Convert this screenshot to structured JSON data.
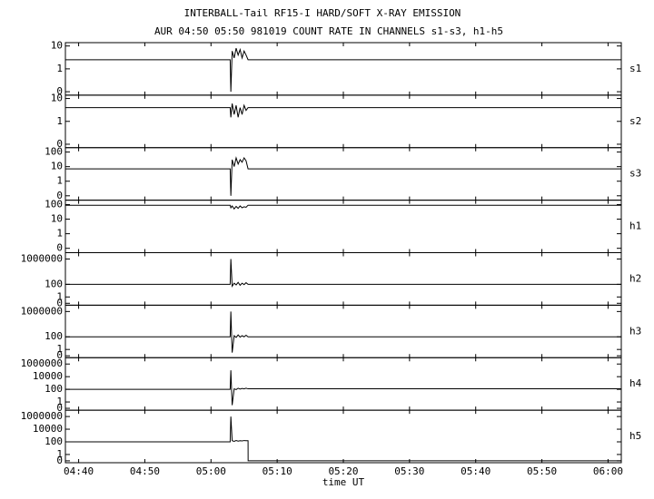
{
  "header": {
    "title": "INTERBALL-Tail RF15-I HARD/SOFT X-RAY EMISSION",
    "subtitle": "AUR 04:50 05:50 981019  COUNT RATE IN CHANNELS s1-s3, h1-h5"
  },
  "chart_data": [
    {
      "type": "line",
      "label": "s1",
      "yscale": "symlog",
      "ylim": [
        -0.15,
        14
      ],
      "yticks": [
        0,
        1,
        10
      ],
      "x": [
        278,
        302.9,
        303.0,
        303.2,
        303.5,
        303.8,
        304.1,
        304.4,
        304.7,
        305.0,
        305.3,
        305.6,
        362
      ],
      "series": [
        {
          "color": "#000000",
          "values": [
            2.5,
            2.5,
            0,
            6,
            3,
            8,
            4,
            7,
            3,
            6,
            4,
            2.5,
            2.5
          ]
        }
      ]
    },
    {
      "type": "line",
      "label": "s2",
      "yscale": "symlog",
      "ylim": [
        -0.15,
        14
      ],
      "yticks": [
        0,
        1,
        10
      ],
      "x": [
        278,
        302.9,
        303.0,
        303.2,
        303.5,
        303.8,
        304.1,
        304.4,
        304.7,
        305.0,
        305.3,
        305.6,
        362
      ],
      "series": [
        {
          "color": "#000000",
          "values": [
            4,
            4,
            1.5,
            6,
            2,
            5,
            1.5,
            4,
            2,
            5,
            3,
            4,
            4
          ]
        }
      ]
    },
    {
      "type": "line",
      "label": "s3",
      "yscale": "symlog",
      "ylim": [
        -0.3,
        200
      ],
      "yticks": [
        0,
        1,
        10,
        100
      ],
      "x": [
        278,
        302.9,
        303.0,
        303.2,
        303.5,
        303.8,
        304.1,
        304.4,
        304.7,
        305.0,
        305.3,
        305.6,
        362
      ],
      "series": [
        {
          "color": "#000000",
          "values": [
            7,
            7,
            0,
            30,
            10,
            40,
            15,
            30,
            20,
            40,
            25,
            7,
            7
          ]
        }
      ]
    },
    {
      "type": "line",
      "label": "h1",
      "yscale": "symlog",
      "ylim": [
        -0.3,
        200
      ],
      "yticks": [
        0,
        1,
        10,
        100
      ],
      "x": [
        278,
        302.9,
        303.0,
        303.2,
        303.5,
        303.8,
        304.1,
        304.4,
        304.7,
        305.0,
        305.3,
        305.6,
        362
      ],
      "series": [
        {
          "color": "#000000",
          "values": [
            90,
            90,
            60,
            80,
            50,
            75,
            55,
            80,
            60,
            70,
            65,
            90,
            90
          ]
        }
      ]
    },
    {
      "type": "line",
      "label": "h2",
      "yscale": "symlog",
      "ylim": [
        -0.3,
        10000000
      ],
      "yticks": [
        0,
        1,
        100,
        1000000
      ],
      "x": [
        278,
        302.9,
        303.0,
        303.2,
        303.5,
        303.8,
        304.1,
        304.4,
        304.7,
        305.0,
        305.3,
        305.6,
        362
      ],
      "series": [
        {
          "color": "#000000",
          "values": [
            100,
            100,
            1000000,
            50,
            150,
            80,
            200,
            70,
            150,
            90,
            180,
            100,
            100
          ]
        }
      ]
    },
    {
      "type": "line",
      "label": "h3",
      "yscale": "symlog",
      "ylim": [
        -0.3,
        10000000
      ],
      "yticks": [
        0,
        1,
        100,
        1000000
      ],
      "x": [
        278,
        302.9,
        303.0,
        303.2,
        303.5,
        303.8,
        304.1,
        304.4,
        304.7,
        305.0,
        305.3,
        305.6,
        362
      ],
      "series": [
        {
          "color": "#000000",
          "values": [
            100,
            100,
            1000000,
            0.5,
            150,
            80,
            200,
            90,
            150,
            100,
            180,
            100,
            100
          ]
        }
      ]
    },
    {
      "type": "line",
      "label": "h4",
      "yscale": "symlog",
      "ylim": [
        -0.3,
        10000000
      ],
      "yticks": [
        0,
        1,
        100,
        10000,
        1000000
      ],
      "x": [
        278,
        302.9,
        303.0,
        303.2,
        303.5,
        303.8,
        304.1,
        304.4,
        304.7,
        305.0,
        305.3,
        305.6,
        362
      ],
      "series": [
        {
          "color": "#000000",
          "values": [
            100,
            100,
            100000,
            0.5,
            120,
            90,
            150,
            110,
            140,
            120,
            150,
            120,
            120
          ]
        }
      ]
    },
    {
      "type": "line",
      "label": "h5",
      "yscale": "symlog",
      "ylim": [
        -0.3,
        10000000
      ],
      "yticks": [
        0,
        1,
        100,
        10000,
        1000000
      ],
      "x": [
        278,
        302.9,
        303.0,
        303.2,
        303.5,
        303.8,
        304.1,
        304.4,
        304.7,
        305.0,
        305.3,
        305.6,
        305.61,
        362
      ],
      "series": [
        {
          "color": "#000000",
          "values": [
            100,
            100,
            1000000,
            150,
            120,
            160,
            130,
            150,
            140,
            160,
            150,
            150,
            0,
            0
          ]
        }
      ],
      "xlim": [
        278,
        362
      ],
      "xlabel": "time UT",
      "xticks": [
        {
          "value": 280,
          "label": "04:40"
        },
        {
          "value": 290,
          "label": "04:50"
        },
        {
          "value": 300,
          "label": "05:00"
        },
        {
          "value": 310,
          "label": "05:10"
        },
        {
          "value": 320,
          "label": "05:20"
        },
        {
          "value": 330,
          "label": "05:30"
        },
        {
          "value": 340,
          "label": "05:40"
        },
        {
          "value": 350,
          "label": "05:50"
        },
        {
          "value": 360,
          "label": "06:00"
        }
      ]
    }
  ]
}
